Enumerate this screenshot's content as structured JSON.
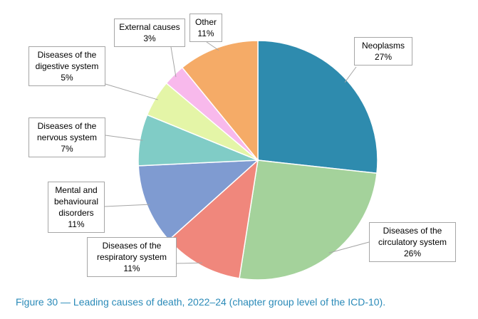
{
  "chart_data": {
    "type": "pie",
    "categories": [
      "Neoplasms",
      "Diseases of the circulatory system",
      "Diseases of the respiratory system",
      "Mental and behavioural disorders",
      "Diseases of the nervous system",
      "Diseases of the digestive system",
      "External causes",
      "Other"
    ],
    "values": [
      27,
      26,
      11,
      11,
      7,
      5,
      3,
      11
    ],
    "value_labels": [
      "27%",
      "26%",
      "11%",
      "11%",
      "7%",
      "5%",
      "3%",
      "11%"
    ],
    "colors": [
      "#2e8bae",
      "#a4d29b",
      "#f0877c",
      "#7f9bd1",
      "#80ccc6",
      "#e4f5a7",
      "#f8b9ec",
      "#f5ab67"
    ],
    "caption": "Figure 30 — Leading causes of death, 2022–24 (chapter group level of the ICD-10)."
  }
}
